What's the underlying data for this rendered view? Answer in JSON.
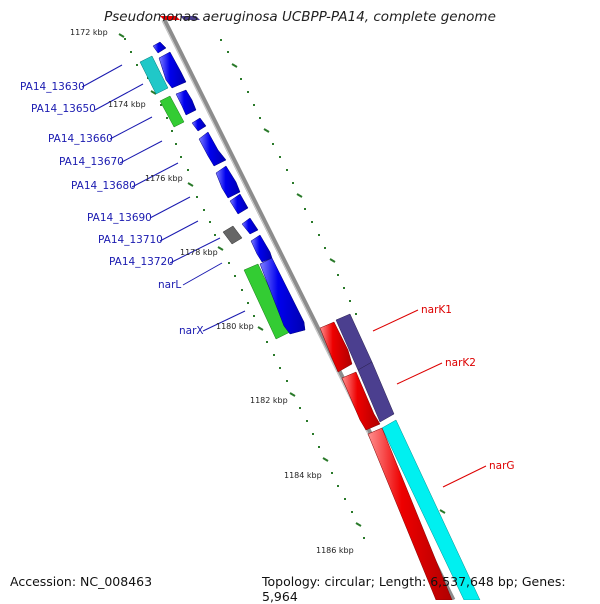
{
  "title": "Pseudomonas aeruginosa UCBPP-PA14, complete genome",
  "footer": {
    "accession": "Accession: NC_008463",
    "topology": "Topology: circular; Length: 6,537,648 bp; Genes: 5,964"
  },
  "ticks": [
    "1172 kbp",
    "1174 kbp",
    "1176 kbp",
    "1178 kbp",
    "1180 kbp",
    "1182 kbp",
    "1184 kbp",
    "1186 kbp"
  ],
  "left_labels": [
    "PA14_13630",
    "PA14_13650",
    "PA14_13660",
    "PA14_13670",
    "PA14_13680",
    "PA14_13690",
    "PA14_13710",
    "PA14_13720",
    "narL",
    "narX"
  ],
  "right_labels": [
    "narK1",
    "narK2",
    "narG"
  ],
  "colors": {
    "cds_blue": "#0000ee",
    "cds_teal": "#20c8c8",
    "cds_green": "#33cc33",
    "cds_gray": "#666666",
    "cds_red": "#ee0000",
    "cds_purple": "#4b3f8f",
    "cds_cyan": "#00f0f0",
    "label_blue": "#1a1ab0",
    "label_red": "#dd0000",
    "tick_green": "#2a7a2a"
  }
}
